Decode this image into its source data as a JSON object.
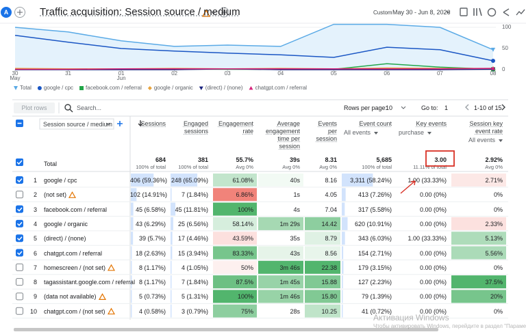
{
  "header": {
    "avatar": "A",
    "title": "Traffic acquisition: Session source / medium",
    "date_label": "Custom",
    "date_range": "May 30 - Jun 8, 2026"
  },
  "chart_data": {
    "type": "line",
    "categories": [
      "30",
      "31",
      "01",
      "02",
      "03",
      "04",
      "05",
      "06",
      "07",
      "08"
    ],
    "months": [
      "May",
      null,
      "Jun",
      null,
      null,
      null,
      null,
      null,
      null,
      null
    ],
    "ylim": [
      0,
      108
    ],
    "yticks": [
      0,
      50,
      100
    ],
    "grid": true,
    "series": [
      {
        "name": "Total",
        "color": "#5aaae6",
        "marker": "pin",
        "values": [
          100,
          89,
          68,
          55,
          58,
          55,
          107,
          107,
          100,
          47
        ]
      },
      {
        "name": "google / cpc",
        "color": "#1a56c4",
        "marker": "circle",
        "values": [
          81,
          65,
          50,
          44,
          39,
          35,
          29,
          53,
          47,
          21
        ]
      },
      {
        "name": "facebook.com / referral",
        "color": "#21a548",
        "marker": "square",
        "values": [
          2,
          1,
          1,
          2,
          1,
          1,
          1,
          14,
          6,
          1
        ]
      },
      {
        "name": "google / organic",
        "color": "#e8a33d",
        "marker": "diamond",
        "values": [
          3,
          2,
          2,
          3,
          2,
          3,
          2,
          4,
          3,
          3
        ]
      },
      {
        "name": "(direct) / (none)",
        "color": "#1a237e",
        "marker": "triangle-down",
        "values": [
          0,
          0,
          0,
          0,
          2,
          0,
          0,
          0,
          0,
          1
        ]
      },
      {
        "name": "chatgpt.com / referral",
        "color": "#d6247b",
        "marker": "triangle-up",
        "values": [
          1,
          1,
          2,
          2,
          2,
          2,
          2,
          2,
          2,
          3
        ]
      }
    ]
  },
  "table": {
    "plot_rows": "Plot rows",
    "search": "Search...",
    "rows_per_page_label": "Rows per page:",
    "rows_per_page": "10",
    "goto_label": "Go to:",
    "goto": "1",
    "range": "1-10 of 15",
    "dimension": "Session source / medium",
    "columns": [
      {
        "label": "Sessions"
      },
      {
        "label": "Engaged sessions"
      },
      {
        "label": "Engagement rate"
      },
      {
        "label": "Average engagement time per session"
      },
      {
        "label": "Events per session"
      },
      {
        "label": "Event count",
        "filter": "All events"
      },
      {
        "label": "Key events",
        "filter": "purchase"
      },
      {
        "label": "Session key event rate",
        "filter": "All events"
      }
    ],
    "total": {
      "label": "Total",
      "values": [
        "684",
        "381",
        "55.7%",
        "39s",
        "8.31",
        "5,685",
        "3.00",
        "2.92%"
      ],
      "notes": [
        "100% of total",
        "100% of total",
        "Avg 0%",
        "Avg 0%",
        "Avg 0%",
        "100% of total",
        "11.11% of total",
        "Avg 0%"
      ]
    },
    "rows": [
      {
        "n": 1,
        "name": "google / cpc",
        "selected": true,
        "warning": false,
        "cells": [
          "406 (59.36%)",
          "248 (65.09%)",
          "61.08%",
          "40s",
          "8.16",
          "3,311 (58.24%)",
          "1.00 (33.33%)",
          "2.71%"
        ]
      },
      {
        "n": 2,
        "name": "(not set)",
        "selected": false,
        "warning": true,
        "cells": [
          "102 (14.91%)",
          "7 (1.84%)",
          "6.86%",
          "1s",
          "4.05",
          "413 (7.26%)",
          "0.00 (0%)",
          "0%"
        ]
      },
      {
        "n": 3,
        "name": "facebook.com / referral",
        "selected": true,
        "warning": false,
        "cells": [
          "45 (6.58%)",
          "45 (11.81%)",
          "100%",
          "4s",
          "7.04",
          "317 (5.58%)",
          "0.00 (0%)",
          "0%"
        ]
      },
      {
        "n": 4,
        "name": "google / organic",
        "selected": true,
        "warning": false,
        "cells": [
          "43 (6.29%)",
          "25 (6.56%)",
          "58.14%",
          "1m 29s",
          "14.42",
          "620 (10.91%)",
          "0.00 (0%)",
          "2.33%"
        ]
      },
      {
        "n": 5,
        "name": "(direct) / (none)",
        "selected": true,
        "warning": false,
        "cells": [
          "39 (5.7%)",
          "17 (4.46%)",
          "43.59%",
          "35s",
          "8.79",
          "343 (6.03%)",
          "1.00 (33.33%)",
          "5.13%"
        ]
      },
      {
        "n": 6,
        "name": "chatgpt.com / referral",
        "selected": true,
        "warning": false,
        "cells": [
          "18 (2.63%)",
          "15 (3.94%)",
          "83.33%",
          "43s",
          "8.56",
          "154 (2.71%)",
          "0.00 (0%)",
          "5.56%"
        ]
      },
      {
        "n": 7,
        "name": "homescreen / (not set)",
        "selected": false,
        "warning": true,
        "cells": [
          "8 (1.17%)",
          "4 (1.05%)",
          "50%",
          "3m 46s",
          "22.38",
          "179 (3.15%)",
          "0.00 (0%)",
          "0%"
        ]
      },
      {
        "n": 8,
        "name": "tagassistant.google.com / referral",
        "selected": false,
        "warning": false,
        "cells": [
          "8 (1.17%)",
          "7 (1.84%)",
          "87.5%",
          "1m 45s",
          "15.88",
          "127 (2.23%)",
          "0.00 (0%)",
          "37.5%"
        ]
      },
      {
        "n": 9,
        "name": "(data not available)",
        "selected": false,
        "warning": true,
        "cells": [
          "5 (0.73%)",
          "5 (1.31%)",
          "100%",
          "1m 46s",
          "15.80",
          "79 (1.39%)",
          "0.00 (0%)",
          "20%"
        ]
      },
      {
        "n": 10,
        "name": "chatgpt.com / (not set)",
        "selected": false,
        "warning": true,
        "cells": [
          "4 (0.58%)",
          "3 (0.79%)",
          "75%",
          "28s",
          "10.25",
          "41 (0.72%)",
          "0.00 (0%)",
          "0%"
        ]
      }
    ]
  },
  "watermark": {
    "title": "Активация Windows",
    "text": "Чтобы активировать Windows, перейдите в раздел \"Параметр"
  }
}
